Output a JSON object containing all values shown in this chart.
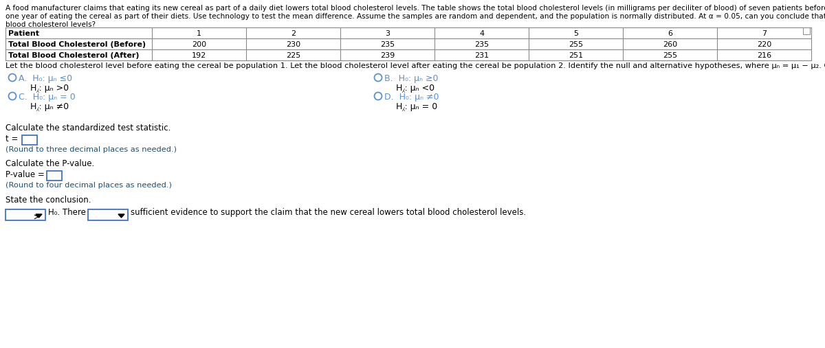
{
  "intro_line1": "A food manufacturer claims that eating its new cereal as part of a daily diet lowers total blood cholesterol levels. The table shows the total blood cholesterol levels (in milligrams per deciliter of blood) of seven patients before eating the cereal and after",
  "intro_line2": "one year of eating the cereal as part of their diets. Use technology to test the mean difference. Assume the samples are random and dependent, and the population is normally distributed. At α = 0.05, can you conclude that the new cereal lowers total",
  "intro_line3": "blood cholesterol levels?",
  "patients": [
    "1",
    "2",
    "3",
    "4",
    "5",
    "6",
    "7"
  ],
  "before": [
    "200",
    "230",
    "235",
    "235",
    "255",
    "260",
    "220"
  ],
  "after": [
    "192",
    "225",
    "239",
    "231",
    "251",
    "255",
    "216"
  ],
  "row_labels": [
    "Patient",
    "Total Blood Cholesterol (Before)",
    "Total Blood Cholesterol (After)"
  ],
  "hypothesis_text": "Let the blood cholesterol level before eating the cereal be population 1. Let the blood cholesterol level after eating the cereal be population 2. Identify the null and alternative hypotheses, where μₙ = μ₁ − μ₂. Choose the correct answer below.",
  "optA_letter": "A.",
  "optA_h0": "H₀: μₙ ≤0",
  "optA_ha": "H⁁: μₙ >0",
  "optB_letter": "B.",
  "optB_h0": "H₀: μₙ ≥0",
  "optB_ha": "H⁁: μₙ <0",
  "optC_letter": "C.",
  "optC_h0": "H₀: μₙ = 0",
  "optC_ha": "H⁁: μₙ ≠0",
  "optD_letter": "D.",
  "optD_h0": "H₀: μₙ ≠0",
  "optD_ha": "H⁁: μₙ = 0",
  "calc_t_label": "Calculate the standardized test statistic.",
  "t_prefix": "t =",
  "round_t": "(Round to three decimal places as needed.)",
  "calc_p_label": "Calculate the P-value.",
  "p_prefix": "P-value =",
  "round_p": "(Round to four decimal places as needed.)",
  "conclusion_label": "State the conclusion.",
  "h0_there": "H₀. There",
  "conclusion_text": "sufficient evidence to support the claim that the new cereal lowers total blood cholesterol levels.",
  "bg_color": "#ffffff",
  "circle_color": "#5b8fd4",
  "blue_color": "#1a5276",
  "black": "#000000",
  "table_line_color": "#888888"
}
